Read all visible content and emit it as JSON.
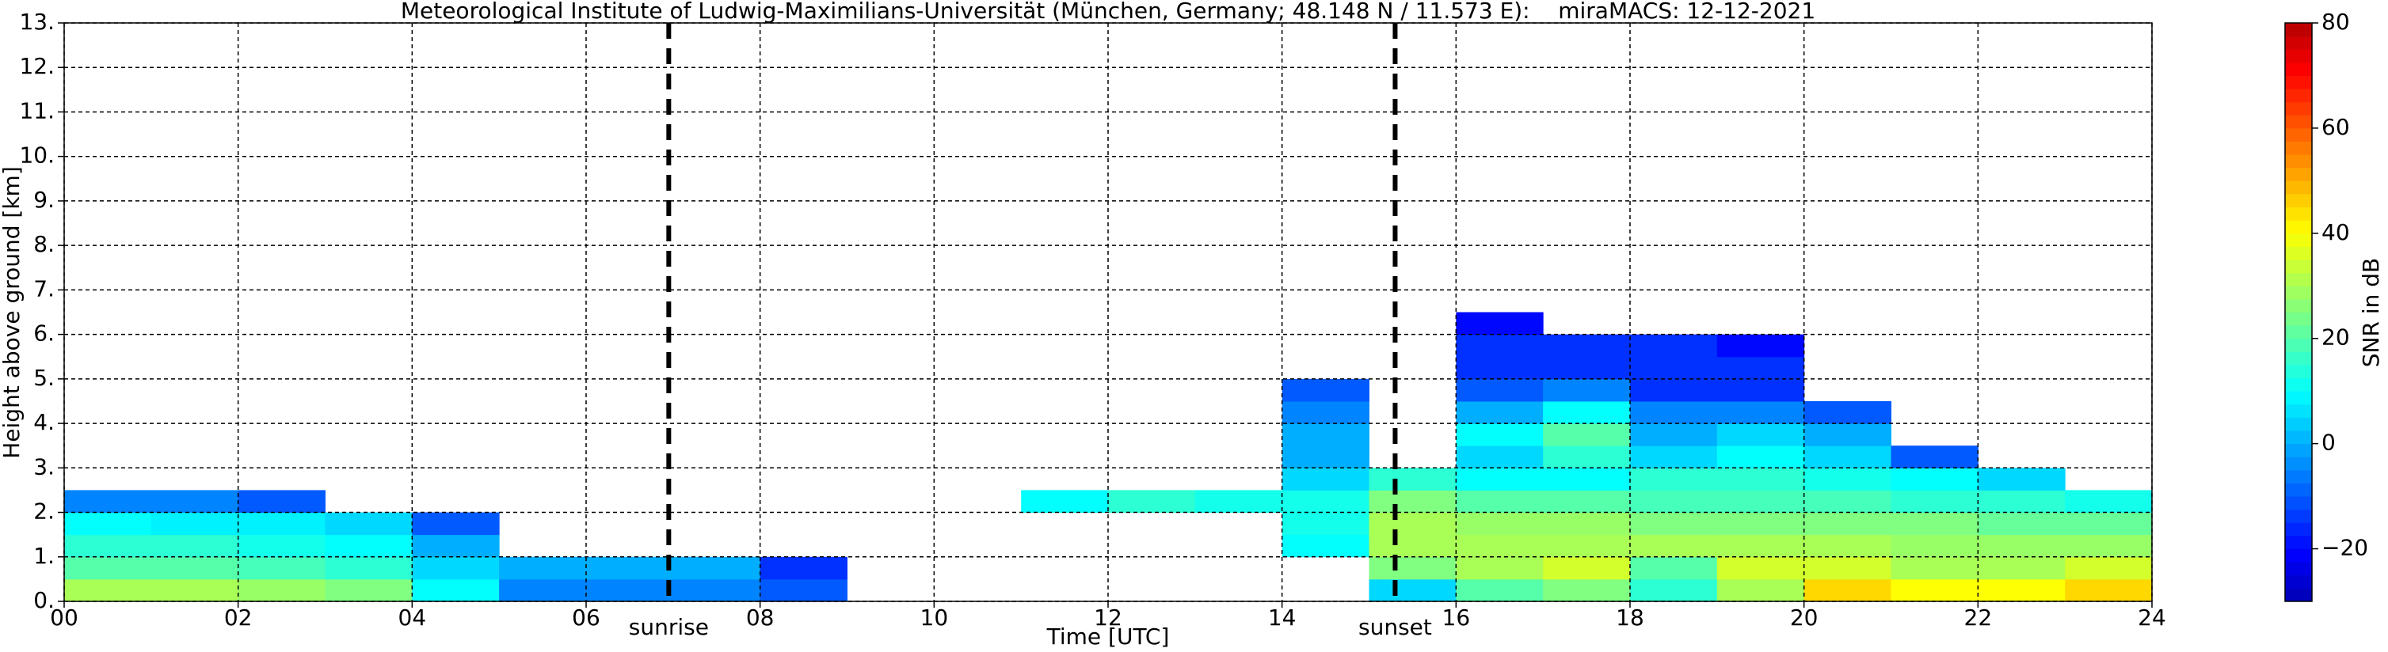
{
  "chart_data": {
    "type": "heatmap",
    "title": "Meteorological Institute of Ludwig-Maximilians-Universität (München, Germany; 48.148 N / 11.573 E):    miraMACS: 12-12-2021",
    "xlabel": "Time [UTC]",
    "ylabel": "Height above ground [km]",
    "colorbar_label": "SNR in dB",
    "x": [
      0,
      1,
      2,
      3,
      4,
      5,
      6,
      7,
      8,
      9,
      10,
      11,
      12,
      13,
      14,
      15,
      16,
      17,
      18,
      19,
      20,
      21,
      22,
      23,
      24
    ],
    "y": [
      0,
      0.5,
      1,
      1.5,
      2,
      2.5,
      3,
      3.5,
      4,
      4.5,
      5,
      5.5,
      6,
      6.5
    ],
    "z": [
      [
        30,
        30,
        28,
        25,
        10,
        -5,
        -5,
        -5,
        -10,
        null,
        null,
        null,
        null,
        null,
        null,
        5,
        20,
        25,
        15,
        30,
        45,
        40,
        40,
        45
      ],
      [
        20,
        20,
        18,
        15,
        5,
        0,
        0,
        0,
        -15,
        null,
        null,
        null,
        null,
        null,
        null,
        25,
        30,
        35,
        20,
        35,
        35,
        30,
        30,
        35
      ],
      [
        15,
        15,
        12,
        10,
        0,
        null,
        null,
        null,
        null,
        null,
        null,
        null,
        null,
        null,
        10,
        30,
        30,
        30,
        30,
        30,
        30,
        28,
        28,
        28
      ],
      [
        10,
        8,
        8,
        5,
        -10,
        null,
        null,
        null,
        null,
        null,
        null,
        null,
        null,
        null,
        12,
        30,
        28,
        28,
        25,
        25,
        25,
        25,
        22,
        22
      ],
      [
        -5,
        -5,
        -10,
        null,
        null,
        null,
        null,
        null,
        null,
        null,
        null,
        10,
        15,
        12,
        12,
        25,
        20,
        20,
        18,
        18,
        18,
        15,
        15,
        12
      ],
      [
        null,
        null,
        null,
        null,
        null,
        null,
        null,
        null,
        null,
        null,
        null,
        null,
        null,
        null,
        5,
        15,
        10,
        10,
        15,
        15,
        12,
        10,
        5,
        null
      ],
      [
        null,
        null,
        null,
        null,
        null,
        null,
        null,
        null,
        null,
        null,
        null,
        null,
        null,
        null,
        0,
        null,
        5,
        15,
        5,
        10,
        5,
        -10,
        null,
        null
      ],
      [
        null,
        null,
        null,
        null,
        null,
        null,
        null,
        null,
        null,
        null,
        null,
        null,
        null,
        null,
        0,
        null,
        10,
        20,
        0,
        5,
        0,
        null,
        null,
        null
      ],
      [
        null,
        null,
        null,
        null,
        null,
        null,
        null,
        null,
        null,
        null,
        null,
        null,
        null,
        null,
        -5,
        null,
        0,
        10,
        -5,
        -5,
        -10,
        null,
        null,
        null
      ],
      [
        null,
        null,
        null,
        null,
        null,
        null,
        null,
        null,
        null,
        null,
        null,
        null,
        null,
        null,
        -10,
        null,
        -10,
        -5,
        -15,
        -15,
        null,
        null,
        null,
        null
      ],
      [
        null,
        null,
        null,
        null,
        null,
        null,
        null,
        null,
        null,
        null,
        null,
        null,
        null,
        null,
        null,
        null,
        -15,
        -15,
        -15,
        -15,
        null,
        null,
        null,
        null
      ],
      [
        null,
        null,
        null,
        null,
        null,
        null,
        null,
        null,
        null,
        null,
        null,
        null,
        null,
        null,
        null,
        null,
        -15,
        -15,
        -15,
        -20,
        null,
        null,
        null,
        null
      ],
      [
        null,
        null,
        null,
        null,
        null,
        null,
        null,
        null,
        null,
        null,
        null,
        null,
        null,
        null,
        null,
        null,
        -20,
        null,
        null,
        null,
        null,
        null,
        null,
        null
      ]
    ],
    "xlim": [
      0,
      24
    ],
    "ylim": [
      0,
      13
    ],
    "xticks": [
      {
        "value": 0,
        "label": "00"
      },
      {
        "value": 2,
        "label": "02"
      },
      {
        "value": 4,
        "label": "04"
      },
      {
        "value": 6,
        "label": "06"
      },
      {
        "value": 8,
        "label": "08"
      },
      {
        "value": 10,
        "label": "10"
      },
      {
        "value": 12,
        "label": "12"
      },
      {
        "value": 14,
        "label": "14"
      },
      {
        "value": 16,
        "label": "16"
      },
      {
        "value": 18,
        "label": "18"
      },
      {
        "value": 20,
        "label": "20"
      },
      {
        "value": 22,
        "label": "22"
      },
      {
        "value": 24,
        "label": "24"
      }
    ],
    "yticks": [
      {
        "value": 0,
        "label": "0."
      },
      {
        "value": 1,
        "label": "1."
      },
      {
        "value": 2,
        "label": "2."
      },
      {
        "value": 3,
        "label": "3."
      },
      {
        "value": 4,
        "label": "4."
      },
      {
        "value": 5,
        "label": "5."
      },
      {
        "value": 6,
        "label": "6."
      },
      {
        "value": 7,
        "label": "7."
      },
      {
        "value": 8,
        "label": "8."
      },
      {
        "value": 9,
        "label": "9."
      },
      {
        "value": 10,
        "label": "10."
      },
      {
        "value": 11,
        "label": "11."
      },
      {
        "value": 12,
        "label": "12."
      },
      {
        "value": 13,
        "label": "13."
      }
    ],
    "zlim": [
      -30,
      80
    ],
    "zticks": [
      {
        "value": -20,
        "label": "−20"
      },
      0,
      20,
      40,
      60,
      80
    ],
    "grid": true,
    "annotations": [
      {
        "x": 6.95,
        "label": "sunrise"
      },
      {
        "x": 15.3,
        "label": "sunset"
      }
    ]
  }
}
